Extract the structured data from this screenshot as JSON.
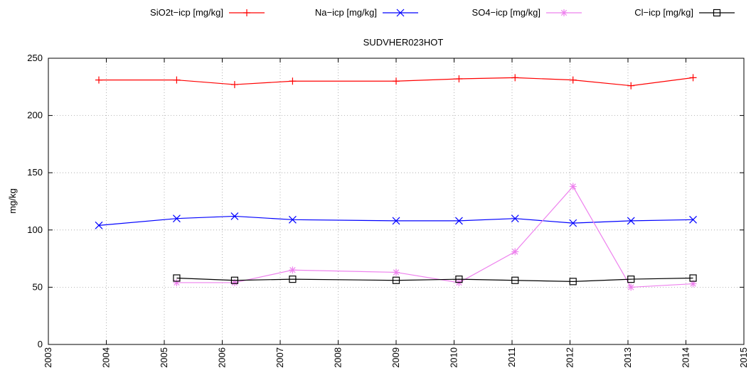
{
  "chart_data": {
    "type": "line",
    "title": "SUDVHER023HOT",
    "xlabel": "",
    "ylabel": "mg/kg",
    "xlim": [
      2003,
      2015
    ],
    "ylim": [
      0,
      250
    ],
    "x_ticks": [
      2003,
      2004,
      2005,
      2006,
      2007,
      2008,
      2009,
      2010,
      2011,
      2012,
      2013,
      2014,
      2015
    ],
    "y_ticks": [
      0,
      50,
      100,
      150,
      200,
      250
    ],
    "grid": true,
    "legend_position": "top",
    "series": [
      {
        "name": "SiO2t−icp [mg/kg]",
        "color": "#ff0000",
        "marker": "plus",
        "points": [
          {
            "x": "2003-11-15",
            "y": 231
          },
          {
            "x": "2005-03-20",
            "y": 231
          },
          {
            "x": "2006-03-20",
            "y": 227
          },
          {
            "x": "2007-03-20",
            "y": 230
          },
          {
            "x": "2009-01-01",
            "y": 230
          },
          {
            "x": "2010-02-01",
            "y": 232
          },
          {
            "x": "2011-01-20",
            "y": 233
          },
          {
            "x": "2012-01-20",
            "y": 231
          },
          {
            "x": "2013-01-20",
            "y": 226
          },
          {
            "x": "2014-02-15",
            "y": 233
          }
        ]
      },
      {
        "name": "Na−icp [mg/kg]",
        "color": "#0000ff",
        "marker": "cross",
        "points": [
          {
            "x": "2003-11-15",
            "y": 104
          },
          {
            "x": "2005-03-20",
            "y": 110
          },
          {
            "x": "2006-03-20",
            "y": 112
          },
          {
            "x": "2007-03-20",
            "y": 109
          },
          {
            "x": "2009-01-01",
            "y": 108
          },
          {
            "x": "2010-02-01",
            "y": 108
          },
          {
            "x": "2011-01-20",
            "y": 110
          },
          {
            "x": "2012-01-20",
            "y": 106
          },
          {
            "x": "2013-01-20",
            "y": 108
          },
          {
            "x": "2014-02-15",
            "y": 109
          }
        ]
      },
      {
        "name": "SO4−icp [mg/kg]",
        "color": "#ee82ee",
        "marker": "star",
        "points": [
          {
            "x": "2005-03-20",
            "y": 54
          },
          {
            "x": "2006-03-20",
            "y": 54
          },
          {
            "x": "2007-03-20",
            "y": 65
          },
          {
            "x": "2009-01-01",
            "y": 63
          },
          {
            "x": "2010-02-01",
            "y": 54
          },
          {
            "x": "2011-01-20",
            "y": 81
          },
          {
            "x": "2012-01-20",
            "y": 138
          },
          {
            "x": "2013-01-20",
            "y": 50
          },
          {
            "x": "2014-02-15",
            "y": 53
          }
        ]
      },
      {
        "name": "Cl−icp [mg/kg]",
        "color": "#000000",
        "marker": "square",
        "points": [
          {
            "x": "2005-03-20",
            "y": 58
          },
          {
            "x": "2006-03-20",
            "y": 56
          },
          {
            "x": "2007-03-20",
            "y": 57
          },
          {
            "x": "2009-01-01",
            "y": 56
          },
          {
            "x": "2010-02-01",
            "y": 57
          },
          {
            "x": "2011-01-20",
            "y": 56
          },
          {
            "x": "2012-01-20",
            "y": 55
          },
          {
            "x": "2013-01-20",
            "y": 57
          },
          {
            "x": "2014-02-15",
            "y": 58
          }
        ]
      }
    ]
  }
}
